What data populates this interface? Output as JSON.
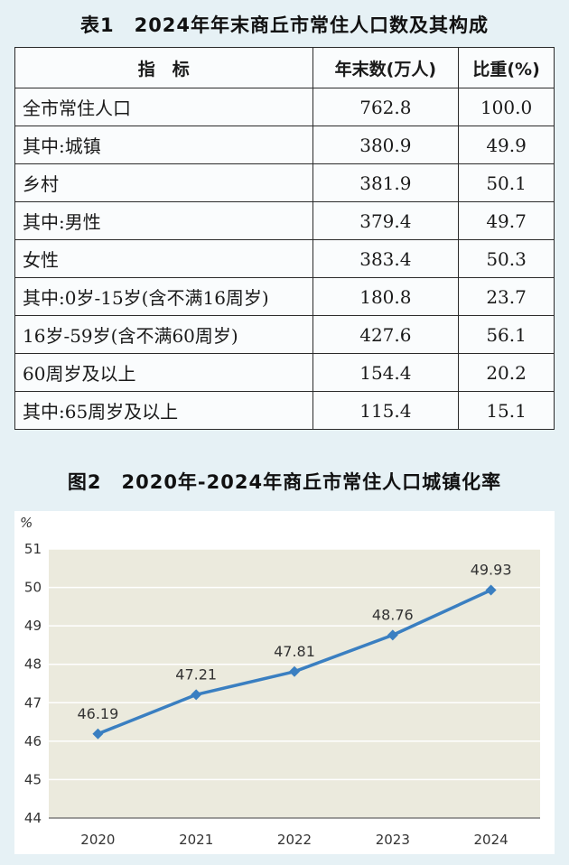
{
  "table": {
    "title": "表1　2024年年末商丘市常住人口数及其构成",
    "headers": [
      "指　标",
      "年末数(万人)",
      "比重(%)"
    ],
    "rows": [
      [
        "全市常住人口",
        "762.8",
        "100.0"
      ],
      [
        "其中:城镇",
        "380.9",
        "49.9"
      ],
      [
        "乡村",
        "381.9",
        "50.1"
      ],
      [
        "其中:男性",
        "379.4",
        "49.7"
      ],
      [
        "女性",
        "383.4",
        "50.3"
      ],
      [
        "其中:0岁-15岁(含不满16周岁)",
        "180.8",
        "23.7"
      ],
      [
        "16岁-59岁(含不满60周岁)",
        "427.6",
        "56.1"
      ],
      [
        "60周岁及以上",
        "154.4",
        "20.2"
      ],
      [
        "其中:65周岁及以上",
        "115.4",
        "15.1"
      ]
    ]
  },
  "chart_data": {
    "type": "line",
    "title": "图2　2020年-2024年商丘市常住人口城镇化率",
    "unit_label": "%",
    "categories": [
      "2020",
      "2021",
      "2022",
      "2023",
      "2024"
    ],
    "series": [
      {
        "values": [
          46.19,
          47.21,
          47.81,
          48.76,
          49.93
        ]
      }
    ],
    "data_labels": [
      "46.19",
      "47.21",
      "47.81",
      "48.76",
      "49.93"
    ],
    "ylim": [
      44,
      51
    ],
    "yticks": [
      44,
      45,
      46,
      47,
      48,
      49,
      50,
      51
    ],
    "grid": true,
    "colors": {
      "line": "#3a7fc1",
      "plot_bg": "#ebeadd",
      "grid": "#ffffff"
    }
  }
}
